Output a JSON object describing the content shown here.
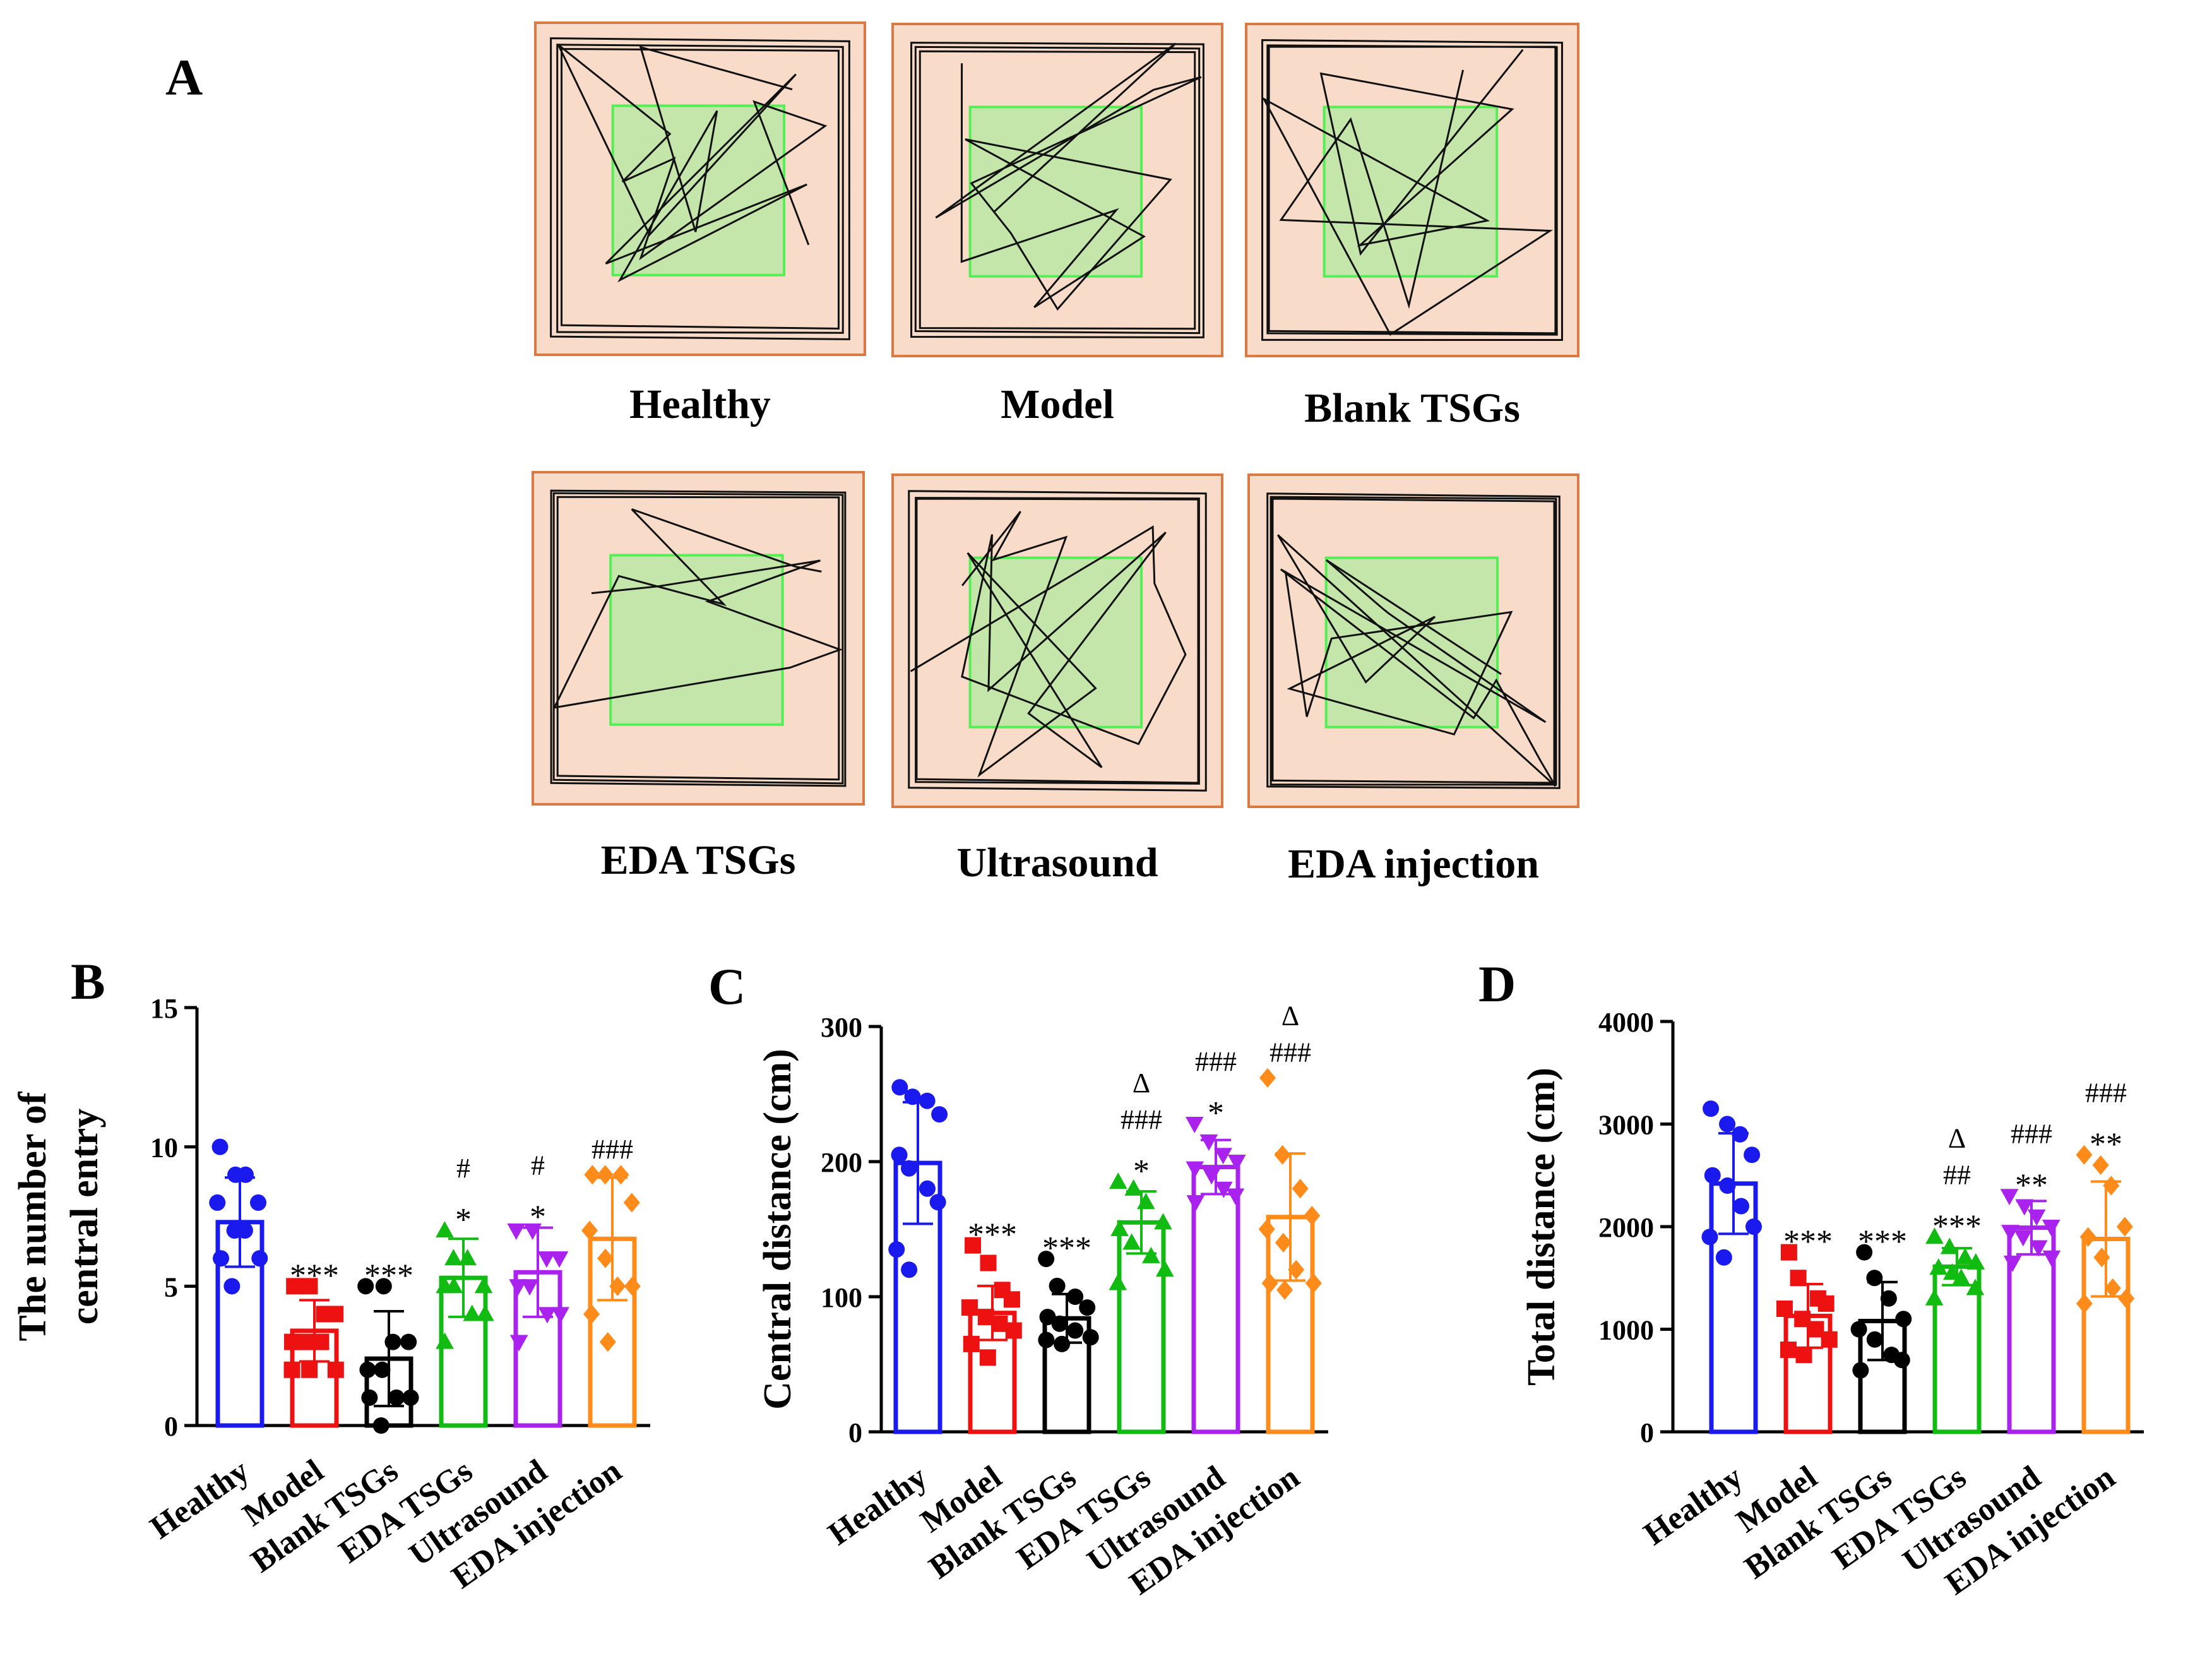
{
  "panel_a": {
    "label": "A",
    "arenas": [
      {
        "name": "Healthy"
      },
      {
        "name": "Model"
      },
      {
        "name": "Blank TSGs"
      },
      {
        "name": "EDA TSGs"
      },
      {
        "name": "Ultrasound"
      },
      {
        "name": "EDA injection"
      }
    ]
  },
  "colors": {
    "Healthy": "#1a1aee",
    "Model": "#ee1111",
    "Blank TSGs": "#000000",
    "EDA TSGs": "#11bb11",
    "Ultrasound": "#aa22ee",
    "EDA injection": "#ff8c1a",
    "arena_fill": "#f8dcc9",
    "arena_border": "#d97a45",
    "center_fill": "#c5e6ab",
    "center_border": "#55ee55",
    "track": "#111111"
  },
  "chart_data": [
    {
      "panel": "B",
      "type": "bar",
      "ylabel": "The number of central entry",
      "ylabel_lines": [
        "The number of",
        "central entry"
      ],
      "ylim": [
        0,
        15
      ],
      "yticks": [
        0,
        5,
        10,
        15
      ],
      "categories": [
        "Healthy",
        "Model",
        "Blank TSGs",
        "EDA TSGs",
        "Ultrasound",
        "EDA injection"
      ],
      "markers": [
        "circle",
        "square",
        "circle",
        "triangle-up",
        "triangle-down",
        "diamond"
      ],
      "means": [
        7.3,
        3.4,
        2.4,
        5.3,
        5.5,
        6.7
      ],
      "sd": [
        1.6,
        1.1,
        1.7,
        1.4,
        1.6,
        2.2
      ],
      "points": [
        [
          10,
          9,
          9,
          8,
          8,
          7,
          7,
          6,
          6,
          5
        ],
        [
          5,
          5,
          4,
          4,
          3,
          3,
          3,
          2,
          2,
          2
        ],
        [
          5,
          5,
          3,
          3,
          2,
          2,
          1,
          1,
          1,
          0
        ],
        [
          7,
          6,
          6,
          5,
          5,
          5,
          4,
          4,
          3
        ],
        [
          7,
          7,
          6,
          6,
          5,
          5,
          4,
          4,
          3
        ],
        [
          9,
          9,
          9,
          8,
          7,
          6,
          5,
          5,
          4,
          3
        ]
      ],
      "annotations": [
        [],
        [
          "***"
        ],
        [
          "***"
        ],
        [
          "*",
          "#"
        ],
        [
          "*",
          "#"
        ],
        [
          "###"
        ]
      ]
    },
    {
      "panel": "C",
      "type": "bar",
      "ylabel": "Central distance (cm)",
      "ylabel_lines": [
        "Central distance (cm)"
      ],
      "ylim": [
        0,
        300
      ],
      "yticks": [
        0,
        100,
        200,
        300
      ],
      "categories": [
        "Healthy",
        "Model",
        "Blank TSGs",
        "EDA TSGs",
        "Ultrasound",
        "EDA injection"
      ],
      "markers": [
        "circle",
        "square",
        "circle",
        "triangle-up",
        "triangle-down",
        "diamond"
      ],
      "means": [
        199,
        88,
        84,
        155,
        196,
        159
      ],
      "sd": [
        45,
        20,
        18,
        23,
        20,
        47
      ],
      "points": [
        [
          255,
          248,
          245,
          235,
          205,
          195,
          180,
          170,
          135,
          120
        ],
        [
          138,
          125,
          105,
          98,
          92,
          85,
          80,
          75,
          65,
          55
        ],
        [
          128,
          108,
          100,
          92,
          85,
          80,
          75,
          70,
          68,
          65
        ],
        [
          185,
          180,
          170,
          155,
          150,
          140,
          130,
          120,
          110
        ],
        [
          228,
          215,
          205,
          200,
          195,
          190,
          180,
          175,
          170
        ],
        [
          262,
          205,
          180,
          160,
          150,
          140,
          120,
          110,
          110,
          105
        ]
      ],
      "annotations": [
        [],
        [
          "***"
        ],
        [
          "***"
        ],
        [
          "*",
          "###",
          "Δ"
        ],
        [
          "*",
          "###"
        ],
        [
          "###",
          "Δ"
        ]
      ]
    },
    {
      "panel": "D",
      "type": "bar",
      "ylabel": "Total distance (cm)",
      "ylabel_lines": [
        "Total distance (cm)"
      ],
      "ylim": [
        0,
        4000
      ],
      "yticks": [
        0,
        1000,
        2000,
        3000,
        4000
      ],
      "categories": [
        "Healthy",
        "Model",
        "Blank TSGs",
        "EDA TSGs",
        "Ultrasound",
        "EDA injection"
      ],
      "markers": [
        "circle",
        "square",
        "circle",
        "triangle-up",
        "triangle-down",
        "diamond"
      ],
      "means": [
        2420,
        1130,
        1080,
        1610,
        1990,
        1880
      ],
      "sd": [
        490,
        310,
        380,
        180,
        260,
        560
      ],
      "points": [
        [
          3150,
          3000,
          2900,
          2700,
          2500,
          2400,
          2200,
          2000,
          1900,
          1700
        ],
        [
          1750,
          1500,
          1300,
          1250,
          1200,
          1100,
          1000,
          900,
          800,
          750
        ],
        [
          1750,
          1500,
          1300,
          1100,
          1000,
          900,
          750,
          700,
          600
        ],
        [
          1900,
          1800,
          1700,
          1650,
          1600,
          1550,
          1500,
          1400,
          1300
        ],
        [
          2300,
          2200,
          2100,
          2000,
          1950,
          1900,
          1800,
          1700,
          1650
        ],
        [
          2700,
          2600,
          2400,
          2000,
          1900,
          1700,
          1400,
          1300,
          1250
        ]
      ],
      "annotations": [
        [],
        [
          "***"
        ],
        [
          "***"
        ],
        [
          "***",
          "##",
          "Δ"
        ],
        [
          "**",
          "###"
        ],
        [
          "**",
          "###"
        ]
      ]
    }
  ]
}
